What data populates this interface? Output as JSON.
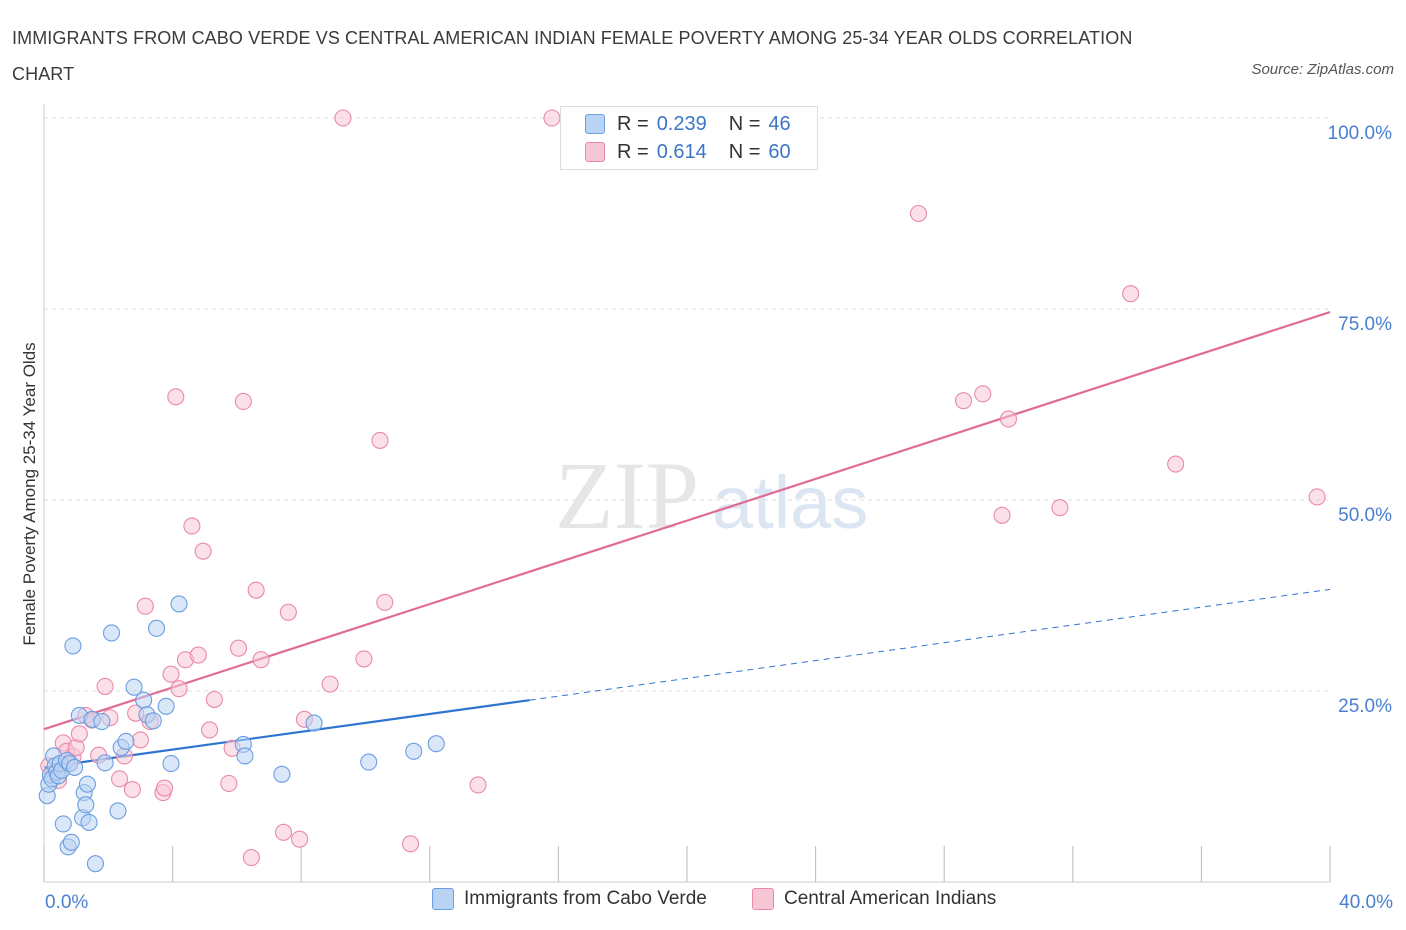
{
  "header": {
    "title": "IMMIGRANTS FROM CABO VERDE VS CENTRAL AMERICAN INDIAN FEMALE POVERTY AMONG 25-34 YEAR OLDS CORRELATION CHART",
    "source": "Source: ZipAtlas.com"
  },
  "legend": {
    "r_label": "R =",
    "n_label": "N =",
    "series1_r": "0.239",
    "series1_n": "46",
    "series2_r": "0.614",
    "series2_n": "60"
  },
  "colors": {
    "blue_fill": "#b9d3f4",
    "blue_stroke": "#6b9ee0",
    "blue_line": "#2f74d0",
    "pink_fill": "#f7c6d5",
    "pink_stroke": "#e98aa8",
    "pink_line": "#e06c96",
    "axis_text": "#4a7fd0",
    "grid": "#dddddd"
  },
  "chart_data": {
    "type": "scatter",
    "xlabel": "",
    "ylabel": "Female Poverty Among 25-34 Year Olds",
    "xlim": [
      0,
      40
    ],
    "ylim": [
      0,
      100
    ],
    "x_tick_labels": [
      "0.0%",
      "40.0%"
    ],
    "y_tick_labels": [
      "25.0%",
      "50.0%",
      "75.0%",
      "100.0%"
    ],
    "y_ticks": [
      25,
      50,
      75,
      100
    ],
    "watermark": "ZIPatlas",
    "series": [
      {
        "name": "Immigrants from Cabo Verde",
        "R": 0.239,
        "N": 46,
        "trend": {
          "x0": 0,
          "y0": 15.0,
          "x1": 15.1,
          "y1": 23.8,
          "dash_to_x": 40,
          "dash_to_y": 38.3
        },
        "points": [
          [
            0.1,
            11.3
          ],
          [
            0.15,
            12.8
          ],
          [
            0.2,
            14.0
          ],
          [
            0.25,
            13.5
          ],
          [
            0.3,
            16.5
          ],
          [
            0.35,
            15.2
          ],
          [
            0.4,
            14.4
          ],
          [
            0.45,
            13.9
          ],
          [
            0.5,
            15.5
          ],
          [
            0.55,
            14.6
          ],
          [
            0.6,
            7.6
          ],
          [
            0.7,
            15.9
          ],
          [
            0.75,
            4.6
          ],
          [
            0.8,
            15.5
          ],
          [
            0.85,
            5.2
          ],
          [
            0.9,
            30.9
          ],
          [
            0.95,
            15.0
          ],
          [
            1.1,
            21.8
          ],
          [
            1.2,
            8.4
          ],
          [
            1.25,
            11.7
          ],
          [
            1.3,
            10.1
          ],
          [
            1.35,
            12.8
          ],
          [
            1.4,
            7.8
          ],
          [
            1.5,
            21.3
          ],
          [
            1.6,
            2.4
          ],
          [
            1.8,
            21.0
          ],
          [
            1.9,
            15.6
          ],
          [
            2.1,
            32.6
          ],
          [
            2.3,
            9.3
          ],
          [
            2.4,
            17.6
          ],
          [
            2.55,
            18.4
          ],
          [
            2.8,
            25.5
          ],
          [
            3.1,
            23.8
          ],
          [
            3.2,
            21.9
          ],
          [
            3.4,
            21.1
          ],
          [
            3.5,
            33.2
          ],
          [
            3.8,
            23.0
          ],
          [
            3.95,
            15.5
          ],
          [
            4.2,
            36.4
          ],
          [
            6.2,
            18.0
          ],
          [
            6.25,
            16.5
          ],
          [
            7.4,
            14.1
          ],
          [
            8.4,
            20.8
          ],
          [
            10.1,
            15.7
          ],
          [
            11.5,
            17.1
          ],
          [
            12.2,
            18.1
          ]
        ]
      },
      {
        "name": "Central American Indians",
        "R": 0.614,
        "N": 60,
        "trend": {
          "x0": 0,
          "y0": 20.0,
          "x1": 40,
          "y1": 74.6
        },
        "points": [
          [
            0.15,
            15.2
          ],
          [
            0.3,
            14.0
          ],
          [
            0.45,
            13.3
          ],
          [
            0.6,
            18.2
          ],
          [
            0.7,
            17.1
          ],
          [
            0.8,
            15.6
          ],
          [
            0.9,
            16.4
          ],
          [
            1.0,
            17.6
          ],
          [
            1.1,
            19.4
          ],
          [
            1.3,
            21.8
          ],
          [
            1.5,
            21.2
          ],
          [
            1.7,
            16.6
          ],
          [
            1.9,
            25.6
          ],
          [
            2.05,
            21.5
          ],
          [
            2.35,
            13.5
          ],
          [
            2.5,
            16.5
          ],
          [
            2.75,
            12.1
          ],
          [
            2.85,
            22.1
          ],
          [
            3.0,
            18.6
          ],
          [
            3.15,
            36.1
          ],
          [
            3.3,
            21.0
          ],
          [
            3.7,
            11.7
          ],
          [
            3.75,
            12.3
          ],
          [
            3.95,
            27.2
          ],
          [
            4.1,
            63.5
          ],
          [
            4.2,
            25.3
          ],
          [
            4.4,
            29.1
          ],
          [
            4.6,
            46.6
          ],
          [
            4.8,
            29.7
          ],
          [
            4.95,
            43.3
          ],
          [
            5.15,
            19.9
          ],
          [
            5.3,
            23.9
          ],
          [
            5.75,
            12.9
          ],
          [
            5.85,
            17.5
          ],
          [
            6.05,
            30.6
          ],
          [
            6.2,
            62.9
          ],
          [
            6.45,
            3.2
          ],
          [
            6.6,
            38.2
          ],
          [
            6.75,
            29.1
          ],
          [
            7.45,
            6.5
          ],
          [
            7.6,
            35.3
          ],
          [
            7.95,
            5.6
          ],
          [
            8.1,
            21.3
          ],
          [
            8.9,
            25.9
          ],
          [
            9.3,
            100.0
          ],
          [
            9.95,
            29.2
          ],
          [
            10.45,
            57.8
          ],
          [
            10.6,
            36.6
          ],
          [
            11.4,
            5.0
          ],
          [
            13.5,
            12.7
          ],
          [
            15.8,
            100.0
          ],
          [
            27.2,
            87.5
          ],
          [
            28.6,
            63.0
          ],
          [
            29.2,
            63.9
          ],
          [
            29.8,
            48.0
          ],
          [
            30.0,
            60.6
          ],
          [
            31.6,
            49.0
          ],
          [
            33.8,
            77.0
          ],
          [
            35.2,
            54.7
          ],
          [
            39.6,
            50.4
          ]
        ]
      }
    ]
  }
}
